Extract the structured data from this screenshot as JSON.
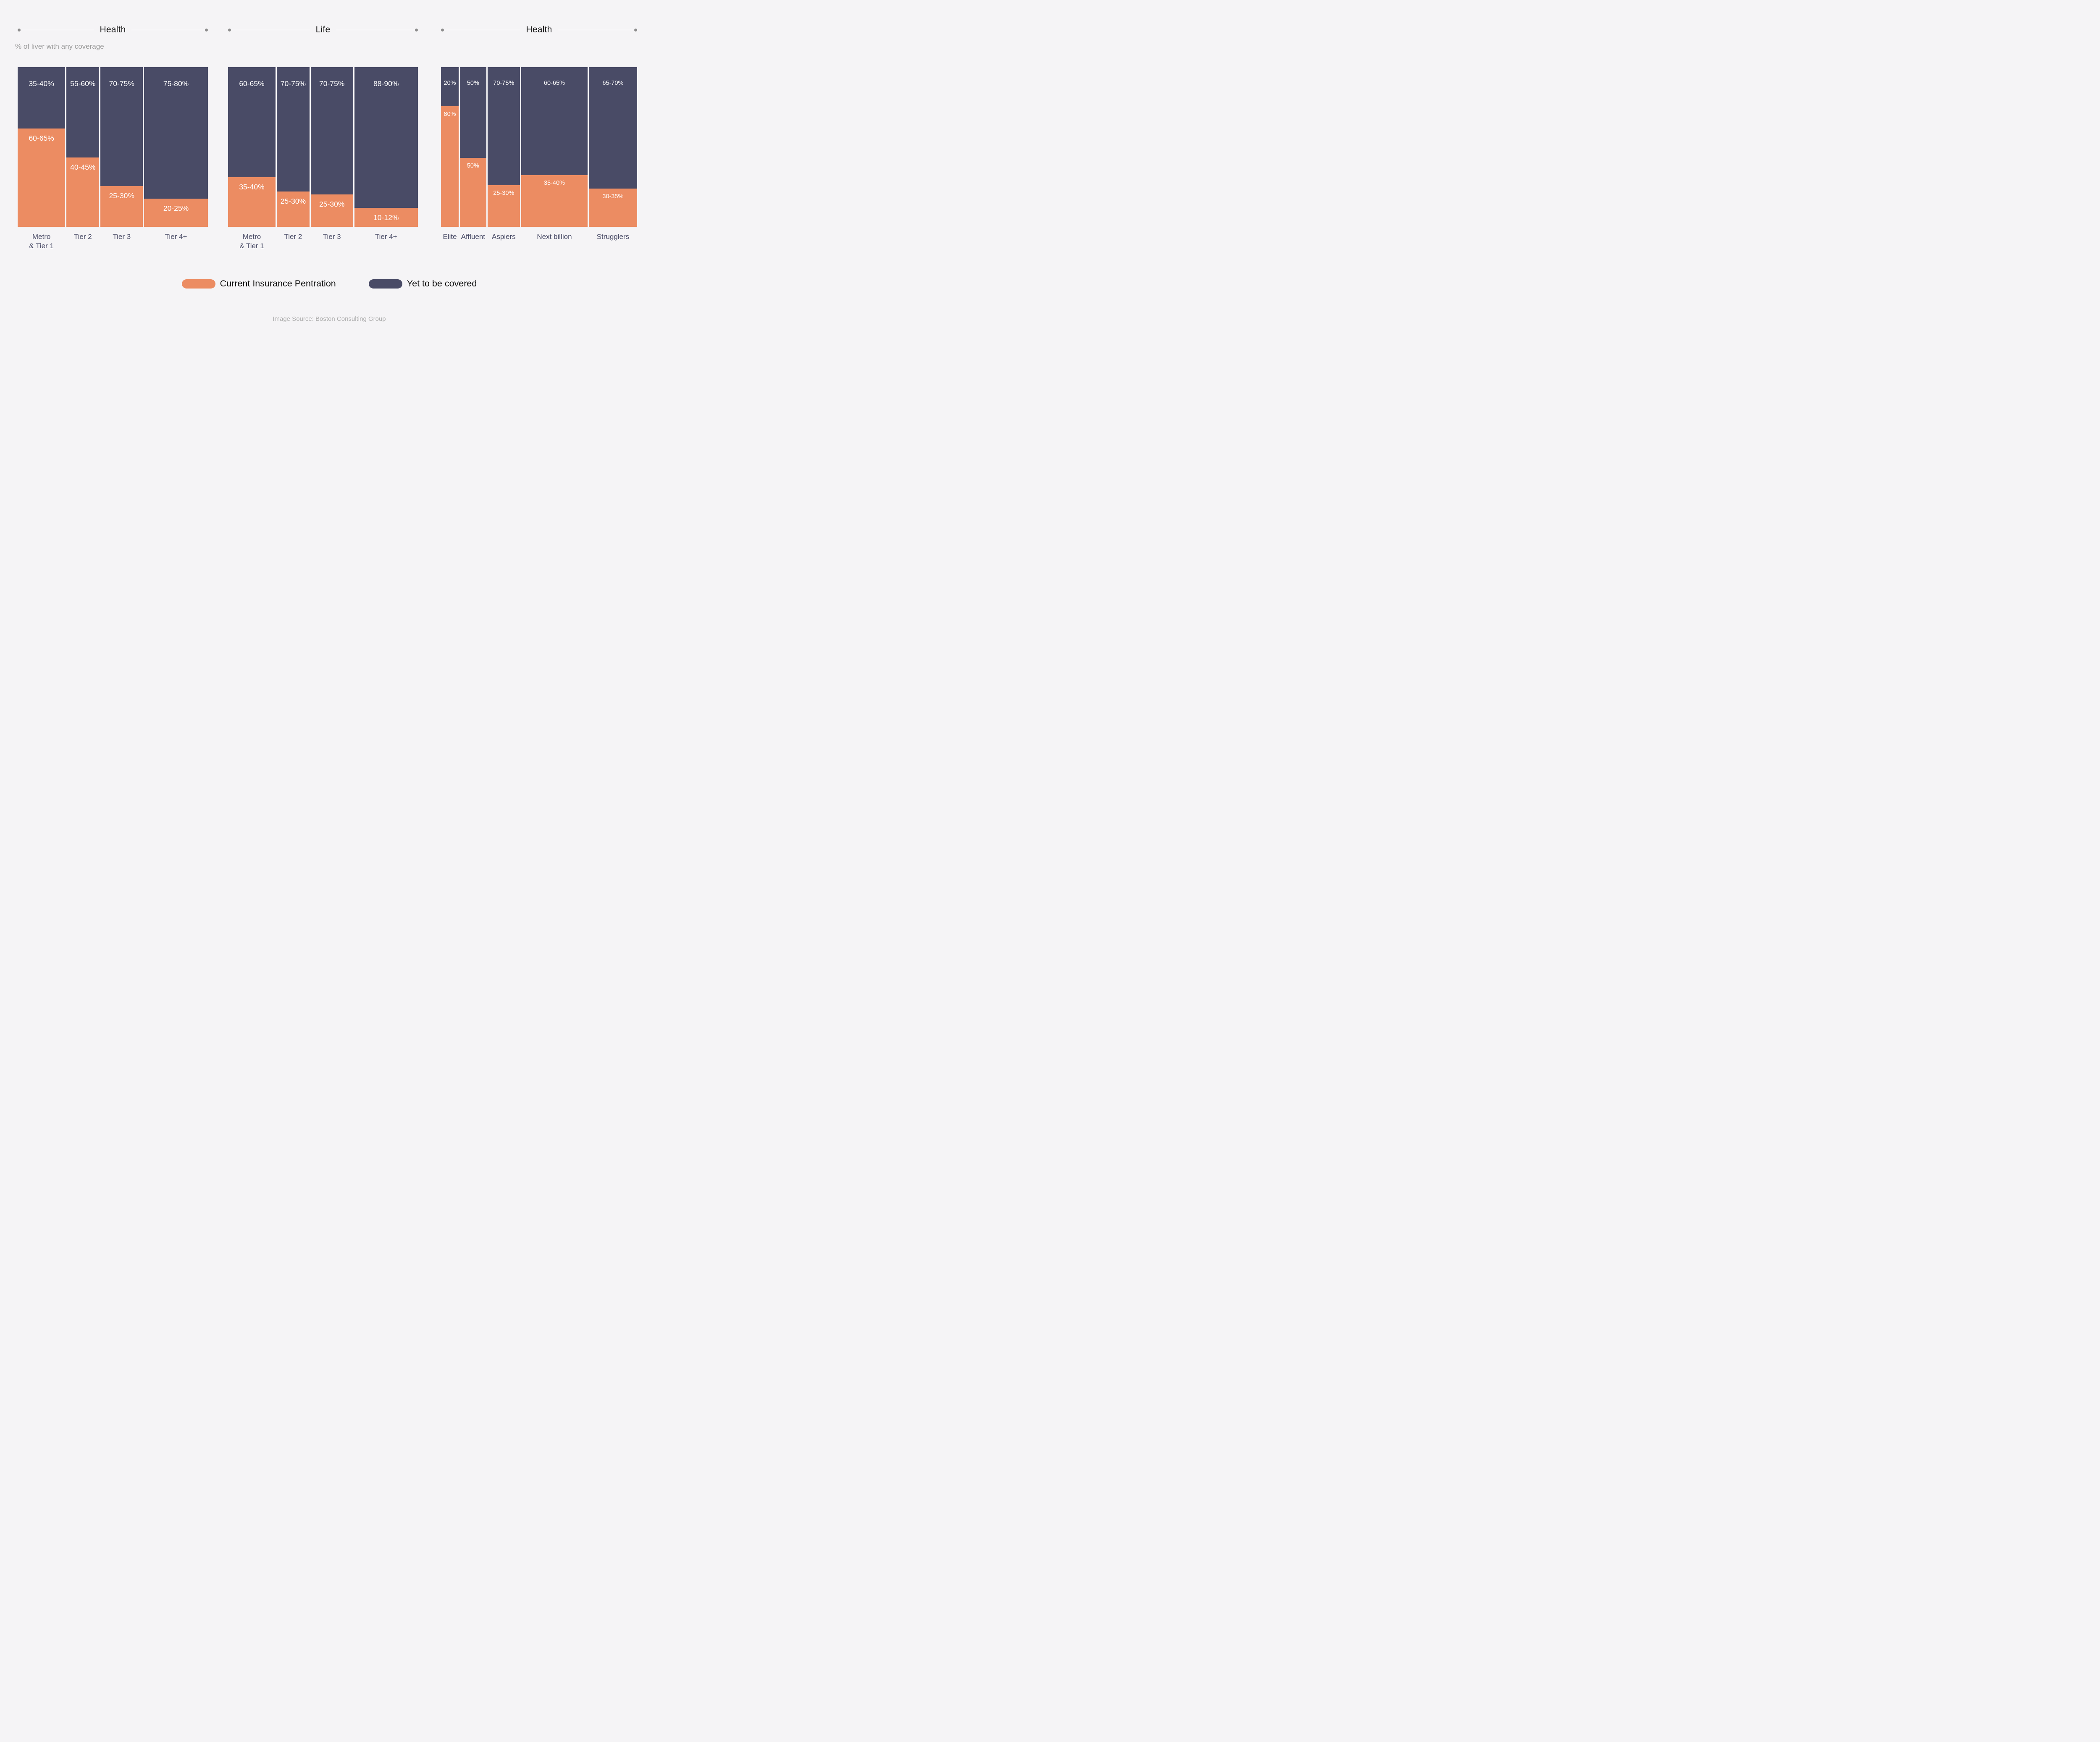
{
  "page": {
    "background": "#F5F4F6",
    "footer": "Image Source: Boston Consulting Group"
  },
  "legend": {
    "items": [
      {
        "label": "Current Insurance Pentration",
        "color": "#EC8C62"
      },
      {
        "label": "Yet to be covered",
        "color": "#494B66"
      }
    ]
  },
  "chart_data": {
    "type": "bar",
    "subtype": "marimekko-stacked-columns",
    "stack_axis": "percent 0-100 per column; column widths proportional to segment size",
    "series_colors": {
      "covered": "#EC8C62",
      "uncovered": "#494B66"
    },
    "panels": [
      {
        "title": "Health",
        "subtitle": "% of liver with any coverage",
        "bars": [
          {
            "category": "Metro\n& Tier 1",
            "covered": "60-65%",
            "uncovered": "35-40%",
            "width_frac": 0.255,
            "covered_height_frac": 0.655
          },
          {
            "category": "Tier 2",
            "covered": "40-45%",
            "uncovered": "55-60%",
            "width_frac": 0.176,
            "covered_height_frac": 0.45
          },
          {
            "category": "Tier 3",
            "covered": "25-30%",
            "uncovered": "70-75%",
            "width_frac": 0.227,
            "covered_height_frac": 0.25
          },
          {
            "category": "Tier 4+",
            "covered": "20-25%",
            "uncovered": "75-80%",
            "width_frac": 0.342,
            "covered_height_frac": 0.16
          }
        ]
      },
      {
        "title": "Life",
        "subtitle": "",
        "bars": [
          {
            "category": "Metro\n& Tier 1",
            "covered": "35-40%",
            "uncovered": "60-65%",
            "width_frac": 0.255,
            "covered_height_frac": 0.31
          },
          {
            "category": "Tier 2",
            "covered": "25-30%",
            "uncovered": "70-75%",
            "width_frac": 0.176,
            "covered_height_frac": 0.21
          },
          {
            "category": "Tier 3",
            "covered": "25-30%",
            "uncovered": "70-75%",
            "width_frac": 0.227,
            "covered_height_frac": 0.19
          },
          {
            "category": "Tier 4+",
            "covered": "10-12%",
            "uncovered": "88-90%",
            "width_frac": 0.342,
            "covered_height_frac": 0.095
          }
        ]
      },
      {
        "title": "Health",
        "subtitle": "",
        "bars": [
          {
            "category": "Elite",
            "covered": "80%",
            "uncovered": "20%",
            "width_frac": 0.095,
            "covered_height_frac": 0.815
          },
          {
            "category": "Affluent",
            "covered": "50%",
            "uncovered": "50%",
            "width_frac": 0.141,
            "covered_height_frac": 0.45
          },
          {
            "category": "Aspiers",
            "covered": "25-30%",
            "uncovered": "70-75%",
            "width_frac": 0.175,
            "covered_height_frac": 0.26
          },
          {
            "category": "Next billion",
            "covered": "35-40%",
            "uncovered": "60-65%",
            "width_frac": 0.356,
            "covered_height_frac": 0.33
          },
          {
            "category": "Strugglers",
            "covered": "30-35%",
            "uncovered": "65-70%",
            "width_frac": 0.26,
            "covered_height_frac": 0.235
          }
        ]
      }
    ]
  }
}
